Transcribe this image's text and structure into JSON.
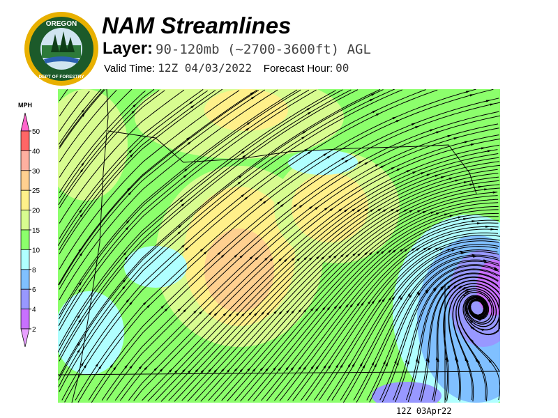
{
  "header": {
    "logo_text": [
      "OREGON",
      "DEPARTMENT OF FORESTRY"
    ],
    "title": "NAM Streamlines",
    "layer_label": "Layer:",
    "layer_value": "90-120mb (~2700-3600ft) AGL",
    "valid_label": "Valid Time:",
    "valid_value": "12Z 04/03/2022",
    "forecast_label": "Forecast Hour:",
    "forecast_value": "00"
  },
  "legend": {
    "unit": "MPH",
    "labels": [
      "50",
      "40",
      "30",
      "25",
      "20",
      "15",
      "10",
      "8",
      "6",
      "4",
      "2"
    ],
    "colors": [
      "#ff66cc",
      "#ff6666",
      "#ffb0a0",
      "#ffd090",
      "#fff08a",
      "#d8fc90",
      "#8cff6c",
      "#b0ffff",
      "#80c0ff",
      "#9898ff",
      "#c870ff",
      "#e8a0ff"
    ]
  },
  "footer": {
    "timestamp": "12Z 03Apr22"
  }
}
